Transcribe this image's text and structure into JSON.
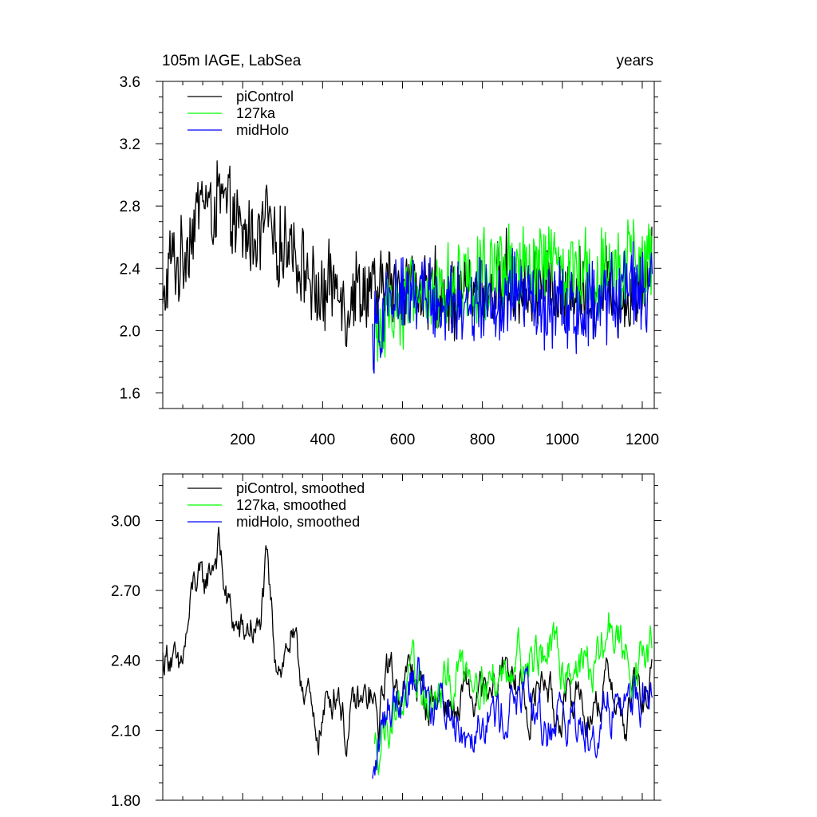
{
  "header": {
    "left_title": "105m IAGE, LabSea",
    "right_title": "years"
  },
  "chart_data": [
    {
      "type": "line",
      "panel": "top",
      "title": "105m IAGE, LabSea",
      "xlabel": "years",
      "ylabel": "",
      "xlim": [
        0,
        1230
      ],
      "ylim": [
        1.5,
        3.6
      ],
      "x_ticks": [
        200,
        400,
        600,
        800,
        1000,
        1200
      ],
      "x_tick_labels": [
        "200",
        "400",
        "600",
        "800",
        "1000",
        "1200"
      ],
      "y_ticks": [
        1.6,
        2.0,
        2.4,
        2.8,
        3.2,
        3.6
      ],
      "y_tick_labels": [
        "1.6",
        "2.0",
        "2.4",
        "2.8",
        "3.2",
        "3.6"
      ],
      "legend": {
        "position": "top-left",
        "entries": [
          "piControl",
          "127ka",
          "midHolo"
        ]
      },
      "series": [
        {
          "name": "piControl",
          "color": "#000000",
          "x_start": 0,
          "x_end": 1225,
          "x": [
            0,
            20,
            40,
            60,
            80,
            100,
            120,
            140,
            160,
            180,
            200,
            220,
            240,
            260,
            280,
            300,
            320,
            340,
            360,
            380,
            400,
            420,
            440,
            460,
            480,
            500,
            520,
            540,
            560,
            580,
            600,
            620,
            640,
            660,
            680,
            700,
            720,
            740,
            760,
            780,
            800,
            820,
            840,
            860,
            880,
            900,
            920,
            940,
            960,
            980,
            1000,
            1020,
            1040,
            1060,
            1080,
            1100,
            1120,
            1140,
            1160,
            1180,
            1200,
            1220
          ],
          "values": [
            2.1,
            2.48,
            2.4,
            2.55,
            2.7,
            2.9,
            2.75,
            2.85,
            2.8,
            2.7,
            2.6,
            2.62,
            2.58,
            2.78,
            2.5,
            2.55,
            2.6,
            2.42,
            2.4,
            2.25,
            2.2,
            2.3,
            2.35,
            2.1,
            2.3,
            2.25,
            2.28,
            2.2,
            2.35,
            2.25,
            2.3,
            2.35,
            2.3,
            2.2,
            2.28,
            2.25,
            2.22,
            2.18,
            2.3,
            2.2,
            2.28,
            2.2,
            2.3,
            2.4,
            2.25,
            2.3,
            2.15,
            2.3,
            2.4,
            2.2,
            2.2,
            2.25,
            2.3,
            2.2,
            2.22,
            2.28,
            2.35,
            2.2,
            2.15,
            2.3,
            2.25,
            2.4
          ],
          "amplitude": 0.22
        },
        {
          "name": "127ka",
          "color": "#00ff00",
          "x_start": 530,
          "x_end": 1225,
          "x": [
            530,
            560,
            600,
            640,
            680,
            720,
            760,
            800,
            840,
            880,
            920,
            960,
            1000,
            1040,
            1080,
            1120,
            1160,
            1200,
            1225
          ],
          "values": [
            1.95,
            2.1,
            2.2,
            2.25,
            2.2,
            2.3,
            2.35,
            2.35,
            2.3,
            2.4,
            2.35,
            2.45,
            2.38,
            2.4,
            2.35,
            2.5,
            2.4,
            2.4,
            2.45
          ],
          "amplitude": 0.25
        },
        {
          "name": "midHolo",
          "color": "#0000ff",
          "x_start": 525,
          "x_end": 1225,
          "x": [
            525,
            560,
            600,
            640,
            680,
            720,
            760,
            800,
            840,
            880,
            920,
            960,
            1000,
            1040,
            1080,
            1120,
            1160,
            1200,
            1225
          ],
          "values": [
            1.9,
            2.15,
            2.25,
            2.3,
            2.2,
            2.2,
            2.1,
            2.2,
            2.15,
            2.25,
            2.2,
            2.1,
            2.2,
            2.1,
            2.15,
            2.2,
            2.3,
            2.25,
            2.25
          ],
          "amplitude": 0.24
        }
      ]
    },
    {
      "type": "line",
      "panel": "bottom",
      "title": "",
      "xlabel": "",
      "ylabel": "",
      "xlim": [
        0,
        1230
      ],
      "ylim": [
        1.8,
        3.2
      ],
      "x_ticks": [
        200,
        400,
        600,
        800,
        1000,
        1200
      ],
      "x_tick_labels": [
        "",
        "",
        "",
        "",
        "",
        ""
      ],
      "y_ticks": [
        1.8,
        2.1,
        2.4,
        2.7,
        3.0
      ],
      "y_tick_labels": [
        "1.80",
        "2.10",
        "2.40",
        "2.70",
        "3.00"
      ],
      "legend": {
        "position": "top-left",
        "entries": [
          "piControl, smoothed",
          "127ka, smoothed",
          "midHolo, smoothed"
        ]
      },
      "series": [
        {
          "name": "piControl, smoothed",
          "color": "#000000",
          "x_start": 0,
          "x_end": 1225,
          "x": [
            0,
            20,
            40,
            60,
            80,
            100,
            120,
            140,
            160,
            180,
            200,
            220,
            240,
            260,
            280,
            300,
            320,
            340,
            360,
            380,
            400,
            420,
            440,
            460,
            480,
            500,
            520,
            540,
            560,
            580,
            600,
            620,
            640,
            660,
            680,
            700,
            720,
            740,
            760,
            780,
            800,
            820,
            840,
            860,
            880,
            900,
            920,
            940,
            960,
            980,
            1000,
            1020,
            1040,
            1060,
            1080,
            1100,
            1120,
            1140,
            1160,
            1180,
            1200,
            1220
          ],
          "values": [
            2.4,
            2.45,
            2.3,
            2.5,
            2.75,
            2.7,
            2.8,
            2.9,
            2.65,
            2.55,
            2.5,
            2.55,
            2.5,
            2.8,
            2.45,
            2.4,
            2.5,
            2.35,
            2.3,
            2.05,
            2.15,
            2.25,
            2.3,
            2.05,
            2.2,
            2.2,
            2.25,
            2.1,
            2.4,
            2.3,
            2.3,
            2.35,
            2.3,
            2.2,
            2.25,
            2.25,
            2.2,
            2.15,
            2.3,
            2.2,
            2.25,
            2.2,
            2.3,
            2.45,
            2.25,
            2.3,
            2.15,
            2.3,
            2.35,
            2.15,
            2.2,
            2.2,
            2.3,
            2.15,
            2.2,
            2.25,
            2.35,
            2.2,
            2.1,
            2.3,
            2.2,
            2.3
          ],
          "amplitude": 0.1
        },
        {
          "name": "127ka, smoothed",
          "color": "#00ff00",
          "x_start": 530,
          "x_end": 1225,
          "x": [
            530,
            560,
            600,
            640,
            680,
            720,
            760,
            800,
            840,
            880,
            920,
            960,
            1000,
            1040,
            1080,
            1120,
            1160,
            1200,
            1225
          ],
          "values": [
            2.0,
            2.15,
            2.25,
            2.3,
            2.2,
            2.3,
            2.4,
            2.35,
            2.3,
            2.45,
            2.4,
            2.45,
            2.38,
            2.4,
            2.35,
            2.55,
            2.4,
            2.4,
            2.45
          ],
          "amplitude": 0.12
        },
        {
          "name": "midHolo, smoothed",
          "color": "#0000ff",
          "x_start": 525,
          "x_end": 1225,
          "x": [
            525,
            560,
            600,
            640,
            680,
            720,
            760,
            800,
            840,
            880,
            920,
            960,
            1000,
            1040,
            1080,
            1120,
            1160,
            1200,
            1225
          ],
          "values": [
            1.85,
            2.2,
            2.3,
            2.35,
            2.2,
            2.2,
            2.1,
            2.2,
            2.15,
            2.25,
            2.2,
            2.1,
            2.2,
            2.1,
            2.15,
            2.2,
            2.25,
            2.25,
            2.2
          ],
          "amplitude": 0.12
        }
      ]
    }
  ]
}
